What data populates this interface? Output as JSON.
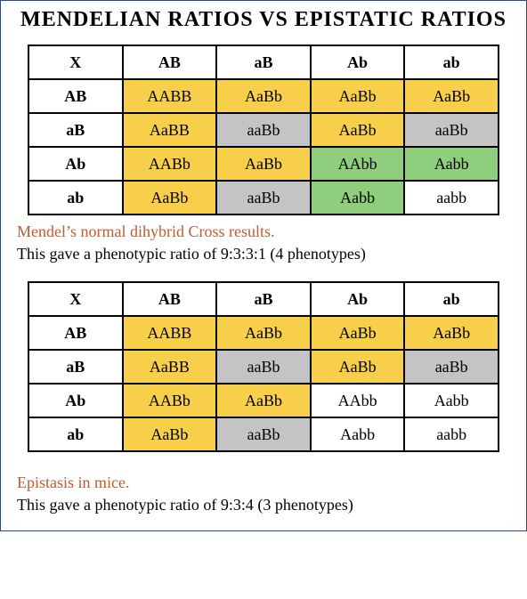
{
  "colors": {
    "yellow": "#f7cf4a",
    "grey": "#c4c4c4",
    "green": "#8fce7d",
    "white": "#ffffff"
  },
  "title": "MENDELIAN RATIOS VS EPISTATIC RATIOS",
  "table1": {
    "corner": "X",
    "col_headers": [
      "AB",
      "aB",
      "Ab",
      "ab"
    ],
    "row_headers": [
      "AB",
      "aB",
      "Ab",
      "ab"
    ],
    "cells": [
      [
        {
          "t": "AABB",
          "c": "yellow"
        },
        {
          "t": "AaBb",
          "c": "yellow"
        },
        {
          "t": "AaBb",
          "c": "yellow"
        },
        {
          "t": "AaBb",
          "c": "yellow"
        }
      ],
      [
        {
          "t": "AaBB",
          "c": "yellow"
        },
        {
          "t": "aaBb",
          "c": "grey"
        },
        {
          "t": "AaBb",
          "c": "yellow"
        },
        {
          "t": "aaBb",
          "c": "grey"
        }
      ],
      [
        {
          "t": "AABb",
          "c": "yellow"
        },
        {
          "t": "AaBb",
          "c": "yellow"
        },
        {
          "t": "AAbb",
          "c": "green"
        },
        {
          "t": "Aabb",
          "c": "green"
        }
      ],
      [
        {
          "t": "AaBb",
          "c": "yellow"
        },
        {
          "t": "aaBb",
          "c": "grey"
        },
        {
          "t": "Aabb",
          "c": "green"
        },
        {
          "t": "aabb",
          "c": "white"
        }
      ]
    ]
  },
  "caption1_a": "Mendel’s normal dihybrid Cross results.",
  "caption1_b": "This gave a phenotypic ratio of 9:3:3:1 (4 phenotypes)",
  "table2": {
    "corner": "X",
    "col_headers": [
      "AB",
      "aB",
      "Ab",
      "ab"
    ],
    "row_headers": [
      "AB",
      "aB",
      "Ab",
      "ab"
    ],
    "cells": [
      [
        {
          "t": "AABB",
          "c": "yellow"
        },
        {
          "t": "AaBb",
          "c": "yellow"
        },
        {
          "t": "AaBb",
          "c": "yellow"
        },
        {
          "t": "AaBb",
          "c": "yellow"
        }
      ],
      [
        {
          "t": "AaBB",
          "c": "yellow"
        },
        {
          "t": "aaBb",
          "c": "grey"
        },
        {
          "t": "AaBb",
          "c": "yellow"
        },
        {
          "t": "aaBb",
          "c": "grey"
        }
      ],
      [
        {
          "t": "AABb",
          "c": "yellow"
        },
        {
          "t": "AaBb",
          "c": "yellow"
        },
        {
          "t": "AAbb",
          "c": "white"
        },
        {
          "t": "Aabb",
          "c": "white"
        }
      ],
      [
        {
          "t": "AaBb",
          "c": "yellow"
        },
        {
          "t": "aaBb",
          "c": "grey"
        },
        {
          "t": "Aabb",
          "c": "white"
        },
        {
          "t": "aabb",
          "c": "white"
        }
      ]
    ]
  },
  "caption2_a": "Epistasis in mice.",
  "caption2_b": "This gave a phenotypic ratio of 9:3:4 (3 phenotypes)"
}
